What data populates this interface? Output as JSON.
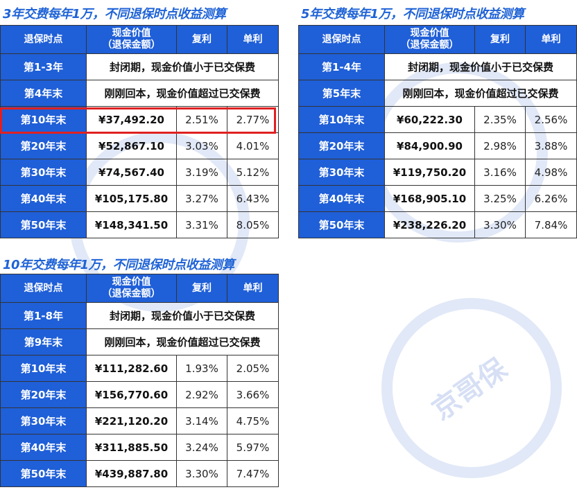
{
  "watermark": "京哥保",
  "headers": [
    "退保时点",
    "现金价值",
    "（退保金额）",
    "复利",
    "单利"
  ],
  "tables": [
    {
      "title": "3年交费每年1万，不同退保时点收益测算",
      "closed": {
        "label": "第1-3年",
        "text": "封闭期，现金价值小于已交保费"
      },
      "breakeven": {
        "label": "第4年末",
        "text": "刚刚回本，现金价值超过已交保费"
      },
      "rows": [
        {
          "label": "第10年末",
          "value": "¥37,492.20",
          "compound": "2.51%",
          "simple": "2.77%"
        },
        {
          "label": "第20年末",
          "value": "¥52,867.10",
          "compound": "3.03%",
          "simple": "4.01%"
        },
        {
          "label": "第30年末",
          "value": "¥74,567.40",
          "compound": "3.19%",
          "simple": "5.12%"
        },
        {
          "label": "第40年末",
          "value": "¥105,175.80",
          "compound": "3.27%",
          "simple": "6.43%"
        },
        {
          "label": "第50年末",
          "value": "¥148,341.50",
          "compound": "3.31%",
          "simple": "8.05%"
        }
      ]
    },
    {
      "title": "5年交费每年1万，不同退保时点收益测算",
      "closed": {
        "label": "第1-4年",
        "text": "封闭期，现金价值小于已交保费"
      },
      "breakeven": {
        "label": "第5年末",
        "text": "刚刚回本，现金价值超过已交保费"
      },
      "rows": [
        {
          "label": "第10年末",
          "value": "¥60,222.30",
          "compound": "2.35%",
          "simple": "2.56%"
        },
        {
          "label": "第20年末",
          "value": "¥84,900.90",
          "compound": "2.98%",
          "simple": "3.88%"
        },
        {
          "label": "第30年末",
          "value": "¥119,750.20",
          "compound": "3.16%",
          "simple": "4.98%"
        },
        {
          "label": "第40年末",
          "value": "¥168,905.10",
          "compound": "3.25%",
          "simple": "6.26%"
        },
        {
          "label": "第50年末",
          "value": "¥238,226.20",
          "compound": "3.30%",
          "simple": "7.84%"
        }
      ]
    },
    {
      "title": "10年交费每年1万，不同退保时点收益测算",
      "closed": {
        "label": "第1-8年",
        "text": "封闭期，现金价值小于已交保费"
      },
      "breakeven": {
        "label": "第9年末",
        "text": "刚刚回本，现金价值超过已交保费"
      },
      "rows": [
        {
          "label": "第10年末",
          "value": "¥111,282.60",
          "compound": "1.93%",
          "simple": "2.05%"
        },
        {
          "label": "第20年末",
          "value": "¥156,770.60",
          "compound": "2.92%",
          "simple": "3.66%"
        },
        {
          "label": "第30年末",
          "value": "¥221,120.20",
          "compound": "3.14%",
          "simple": "4.75%"
        },
        {
          "label": "第40年末",
          "value": "¥311,885.50",
          "compound": "3.24%",
          "simple": "5.97%"
        },
        {
          "label": "第50年末",
          "value": "¥439,887.80",
          "compound": "3.30%",
          "simple": "7.47%"
        }
      ]
    }
  ],
  "highlight": {
    "table": 0,
    "row": 0,
    "color": "#e02020"
  }
}
